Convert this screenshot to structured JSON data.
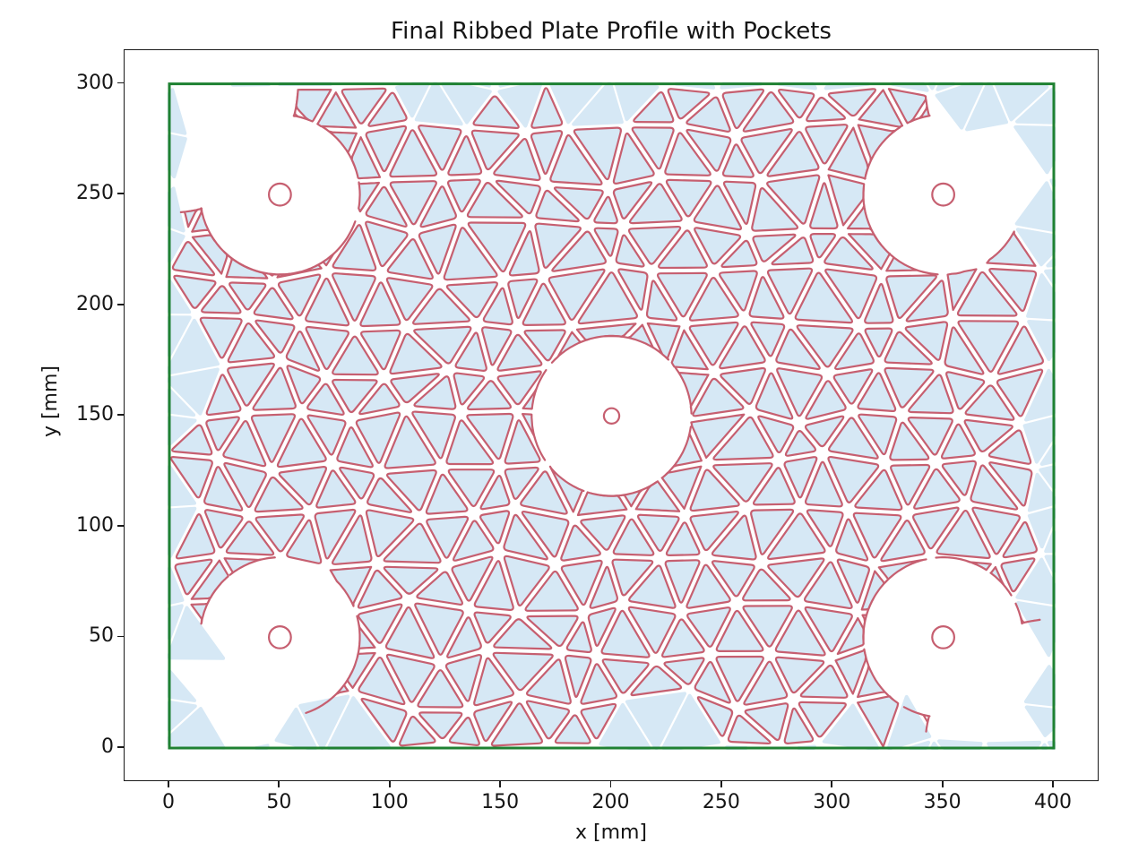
{
  "figure": {
    "title": "Final Ribbed Plate Profile with Pockets",
    "x_axis": {
      "label": "x [mm]",
      "ticks": [
        0,
        50,
        100,
        150,
        200,
        250,
        300,
        350,
        400
      ]
    },
    "y_axis": {
      "label": "y [mm]",
      "ticks": [
        0,
        50,
        100,
        150,
        200,
        250,
        300
      ]
    }
  },
  "chart_data": {
    "type": "geometry",
    "title": "Final Ribbed Plate Profile with Pockets",
    "xlabel": "x [mm]",
    "ylabel": "y [mm]",
    "xlim": [
      -20.6,
      420.6
    ],
    "ylim": [
      -15.4,
      315.4
    ],
    "x_ticks": [
      0,
      50,
      100,
      150,
      200,
      250,
      300,
      350,
      400
    ],
    "y_ticks": [
      0,
      50,
      100,
      150,
      200,
      250,
      300
    ],
    "grid": false,
    "background": "#ffffff",
    "plate_outline": {
      "x0": 0,
      "y0": 0,
      "x1": 400,
      "y1": 300,
      "color": "#1f8132",
      "linewidth": 3
    },
    "holes": [
      {
        "cx": 50,
        "cy": 50,
        "r": 5
      },
      {
        "cx": 350,
        "cy": 50,
        "r": 5
      },
      {
        "cx": 200,
        "cy": 150,
        "r": 3.5
      },
      {
        "cx": 50,
        "cy": 250,
        "r": 5
      },
      {
        "cx": 350,
        "cy": 250,
        "r": 5
      }
    ],
    "hole_outline_color": "#c65f70",
    "pocket_clearances": [
      {
        "cx": 50,
        "cy": 50,
        "r": 36
      },
      {
        "cx": 350,
        "cy": 50,
        "r": 36
      },
      {
        "cx": 200,
        "cy": 150,
        "r": 36
      },
      {
        "cx": 50,
        "cy": 250,
        "r": 36
      },
      {
        "cx": 350,
        "cy": 250,
        "r": 36
      }
    ],
    "corner_clearances": [
      {
        "cx": 0,
        "cy": 0,
        "r": 58
      },
      {
        "cx": 400,
        "cy": 0,
        "r": 58
      },
      {
        "cx": 0,
        "cy": 300,
        "r": 58
      },
      {
        "cx": 400,
        "cy": 300,
        "r": 58
      }
    ],
    "rib_pattern": {
      "kind": "jittered-triangular-mesh",
      "spacing": 24.8,
      "row_height": 21.45,
      "jitter": 5.0,
      "inset": 1.25,
      "corner_radius": 2.2,
      "border_clear_radius": 26,
      "seed": 13,
      "fill_color": "#d6e8f5",
      "outline_color": "#c65f70",
      "outline_width": 2.2
    }
  }
}
